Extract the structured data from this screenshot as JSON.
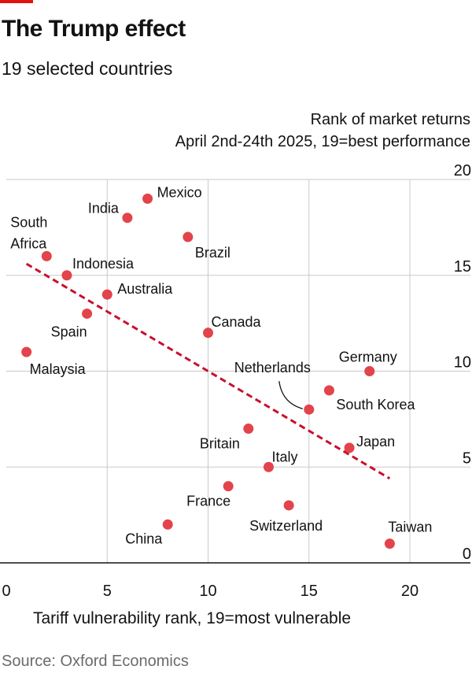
{
  "title": "The Trump effect",
  "subtitle": "19 selected countries",
  "source": "Source: Oxford Economics",
  "colors": {
    "accent": "#e3120b",
    "point": "#e3434a",
    "grid": "#c9c9c9",
    "axis": "#121212"
  },
  "chart_data": {
    "type": "scatter",
    "ylabel_line1": "Rank of market returns",
    "ylabel_line2": "April 2nd-24th 2025, 19=best performance",
    "xlabel": "Tariff vulnerability rank, 19=most vulnerable",
    "xlim": [
      0,
      23
    ],
    "ylim": [
      0,
      20
    ],
    "xticks": [
      0,
      5,
      10,
      15,
      20
    ],
    "yticks": [
      0,
      5,
      10,
      15,
      20
    ],
    "grid": "vertical and horizontal",
    "trendline": {
      "x": [
        1,
        19
      ],
      "y": [
        15.6,
        4.4
      ],
      "style": "dashed"
    },
    "points": [
      {
        "label": "Malaysia",
        "x": 1,
        "y": 11
      },
      {
        "label": "South Africa",
        "x": 2,
        "y": 16
      },
      {
        "label": "Indonesia",
        "x": 3,
        "y": 15
      },
      {
        "label": "Spain",
        "x": 4,
        "y": 13
      },
      {
        "label": "Australia",
        "x": 5,
        "y": 14
      },
      {
        "label": "India",
        "x": 6,
        "y": 18
      },
      {
        "label": "Mexico",
        "x": 7,
        "y": 19
      },
      {
        "label": "China",
        "x": 8,
        "y": 2
      },
      {
        "label": "Brazil",
        "x": 9,
        "y": 17
      },
      {
        "label": "Canada",
        "x": 10,
        "y": 12
      },
      {
        "label": "France",
        "x": 11,
        "y": 4
      },
      {
        "label": "Britain",
        "x": 12,
        "y": 7
      },
      {
        "label": "Italy",
        "x": 13,
        "y": 5
      },
      {
        "label": "Switzerland",
        "x": 14,
        "y": 3
      },
      {
        "label": "Netherlands",
        "x": 15,
        "y": 8
      },
      {
        "label": "South Korea",
        "x": 16,
        "y": 9
      },
      {
        "label": "Japan",
        "x": 17,
        "y": 6
      },
      {
        "label": "Germany",
        "x": 18,
        "y": 10
      },
      {
        "label": "Taiwan",
        "x": 19,
        "y": 1
      }
    ]
  }
}
